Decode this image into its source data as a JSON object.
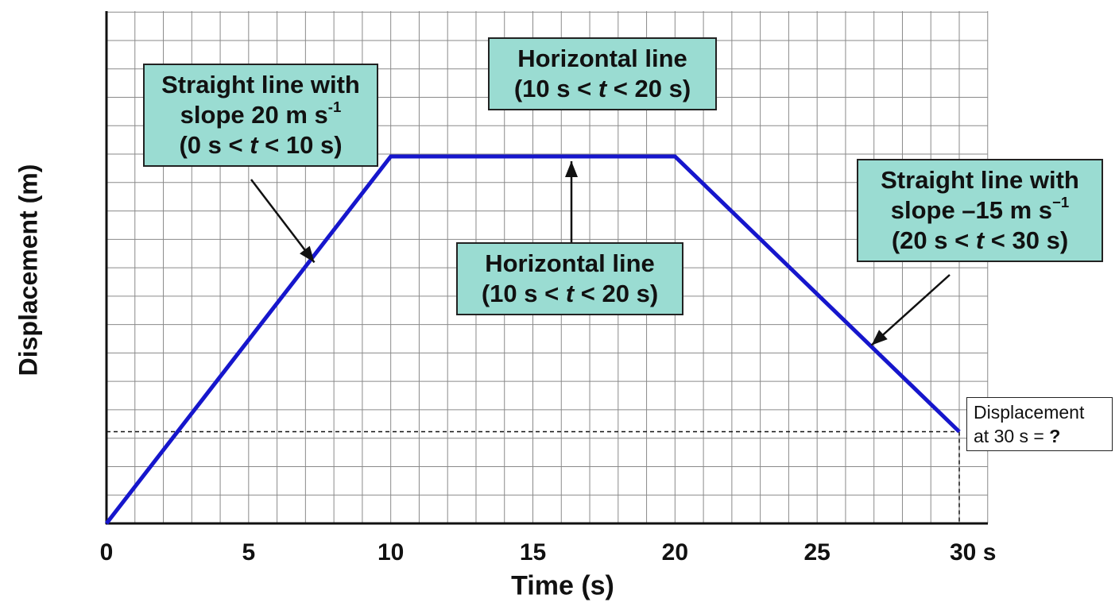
{
  "chart_data": {
    "type": "line",
    "xlabel": "Time (s)",
    "ylabel": "Displacement (m)",
    "xlim": [
      0,
      30
    ],
    "ylim": [
      0,
      200
    ],
    "grid": true,
    "x_ticks": [
      "0",
      "5",
      "10",
      "15",
      "20",
      "25",
      "30 s"
    ],
    "x": [
      0,
      10,
      20,
      30
    ],
    "y": [
      0,
      200,
      200,
      50
    ],
    "series_color": "#1616cc",
    "annotations": [
      {
        "id": "rise",
        "line1": "Straight line with",
        "line2_prefix": "slope 20 m s",
        "line2_sup": "-1",
        "line3_prefix": "(0 s < ",
        "line3_var": "t",
        "line3_suffix": " < 10 s)"
      },
      {
        "id": "flat-top",
        "line1": "Horizontal line",
        "line2_prefix": "(10 s < ",
        "line2_var": "t",
        "line2_suffix": " < 20 s)"
      },
      {
        "id": "flat-middle",
        "line1": "Horizontal line",
        "line2_prefix": "(10 s < ",
        "line2_var": "t",
        "line2_suffix": " < 20 s)"
      },
      {
        "id": "fall",
        "line1": "Straight line with",
        "line2_prefix": "slope –15 m s",
        "line2_sup": "−1",
        "line3_prefix": "(20 s < ",
        "line3_var": "t",
        "line3_suffix": " < 30 s)"
      }
    ],
    "question": {
      "line1": "Displacement",
      "line2_prefix": "at 30 s = ",
      "line2_bold": "?"
    },
    "box_color": "#9adcd2"
  }
}
